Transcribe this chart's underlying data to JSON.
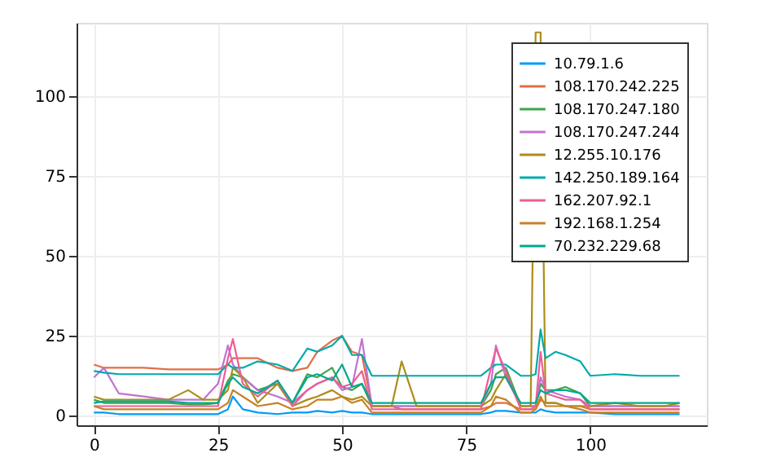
{
  "chart_data": {
    "type": "line",
    "x": [
      0,
      2,
      5,
      10,
      15,
      19,
      22,
      25,
      27,
      28,
      30,
      33,
      37,
      40,
      43,
      45,
      48,
      50,
      52,
      54,
      56,
      60,
      62,
      65,
      70,
      75,
      78,
      80,
      81,
      83,
      86,
      88,
      89,
      90,
      91,
      93,
      95,
      98,
      100,
      105,
      110,
      115,
      118
    ],
    "xlim": [
      -3.5,
      123.5
    ],
    "ylim": [
      -3,
      123
    ],
    "xticks": [
      0,
      25,
      50,
      75,
      100
    ],
    "yticks": [
      0,
      25,
      50,
      75,
      100
    ],
    "grid": true,
    "legend": "top right",
    "line_style": "solid",
    "marker": "none",
    "series": [
      {
        "name": "10.79.1.6",
        "color": "#009af9",
        "values": [
          1,
          1,
          0.5,
          0.5,
          0.5,
          0.5,
          0.5,
          0.5,
          2,
          6,
          2,
          1,
          0.5,
          1,
          1,
          1.5,
          1,
          1.5,
          1,
          1,
          0.5,
          0.5,
          0.5,
          0.5,
          0.5,
          0.5,
          0.5,
          1,
          1.5,
          1.5,
          1,
          1,
          1,
          2,
          1.5,
          1,
          1,
          1,
          1,
          0.5,
          0.5,
          0.5,
          0.5
        ]
      },
      {
        "name": "108.170.242.225",
        "color": "#e26f46",
        "values": [
          16,
          15,
          15,
          15,
          14.5,
          14.5,
          14.5,
          14.5,
          16,
          18,
          18,
          18,
          15,
          14,
          15,
          20,
          23.5,
          25,
          20,
          19,
          3,
          3,
          2,
          2,
          2,
          2,
          2,
          3,
          4,
          4,
          2,
          2,
          2,
          5,
          4,
          4,
          3,
          3,
          2,
          2,
          2,
          2,
          2
        ]
      },
      {
        "name": "108.170.247.180",
        "color": "#3da44d",
        "values": [
          5,
          4,
          4,
          4,
          4,
          3.5,
          3.5,
          4,
          11,
          13,
          12,
          8,
          10,
          4,
          13,
          12,
          15,
          9,
          8,
          10,
          3,
          3,
          3,
          3,
          3,
          3,
          3,
          8,
          13,
          15,
          3,
          3,
          3,
          10,
          8,
          8,
          9,
          7,
          3,
          3,
          3,
          3,
          3
        ]
      },
      {
        "name": "108.170.247.244",
        "color": "#c271d2",
        "values": [
          12,
          15,
          7,
          6,
          5,
          5,
          5,
          10,
          22,
          16,
          12,
          8,
          6,
          4,
          8,
          10,
          12,
          8,
          9,
          24,
          3,
          3,
          3,
          3,
          3,
          3,
          3,
          10,
          22,
          12,
          3,
          3,
          3,
          12,
          8,
          7,
          6,
          5,
          3,
          3,
          3,
          3,
          3
        ]
      },
      {
        "name": "12.255.10.176",
        "color": "#ac8d18",
        "values": [
          6,
          5,
          5,
          5,
          5,
          8,
          5,
          5,
          8,
          15,
          12,
          4,
          10,
          3,
          5,
          6,
          8,
          6,
          5,
          6,
          3,
          3,
          17,
          3,
          3,
          3,
          3,
          5,
          8,
          13,
          3,
          3,
          120,
          120,
          4,
          4,
          3,
          3,
          3,
          4,
          3,
          3,
          4
        ]
      },
      {
        "name": "142.250.189.164",
        "color": "#00a9ad",
        "values": [
          14,
          13.5,
          13,
          13,
          13,
          13,
          13,
          13,
          16,
          15,
          15,
          17,
          16,
          14,
          21,
          20,
          22,
          25,
          19,
          19,
          12.5,
          12.5,
          12.5,
          12.5,
          12.5,
          12.5,
          12.5,
          15,
          16,
          16,
          12.5,
          12.5,
          13,
          27,
          18,
          20,
          19,
          17,
          12.5,
          13,
          12.5,
          12.5,
          12.5
        ]
      },
      {
        "name": "162.207.92.1",
        "color": "#ed5e93",
        "values": [
          3,
          3,
          3,
          3,
          3,
          3,
          3,
          3,
          18,
          24,
          10,
          6,
          11,
          3,
          8,
          10,
          12,
          9,
          10,
          14,
          2,
          2,
          2,
          2,
          2,
          2,
          2,
          15,
          21,
          14,
          2,
          2,
          3,
          20,
          7,
          6,
          5,
          5,
          2,
          2,
          2,
          2,
          2
        ]
      },
      {
        "name": "192.168.1.254",
        "color": "#c68225",
        "values": [
          3,
          2,
          2,
          2,
          2,
          2,
          2,
          2,
          4,
          8,
          6,
          3,
          4,
          2,
          3,
          5,
          5,
          6,
          4,
          5,
          1,
          1,
          1,
          1,
          1,
          1,
          1,
          3,
          6,
          5,
          1,
          1,
          2,
          6,
          3,
          3,
          3,
          2,
          1,
          1,
          1,
          1,
          1
        ]
      },
      {
        "name": "70.232.229.68",
        "color": "#00a98d",
        "values": [
          4,
          4.5,
          4.5,
          4.5,
          4.5,
          4,
          4,
          4,
          10,
          12,
          9,
          7,
          11,
          4,
          12,
          13,
          11,
          16,
          9,
          10,
          4,
          4,
          4,
          4,
          4,
          4,
          4,
          10,
          12,
          12,
          4,
          4,
          4,
          8,
          7,
          8,
          8,
          7,
          4,
          4,
          4,
          4,
          4
        ]
      }
    ]
  }
}
